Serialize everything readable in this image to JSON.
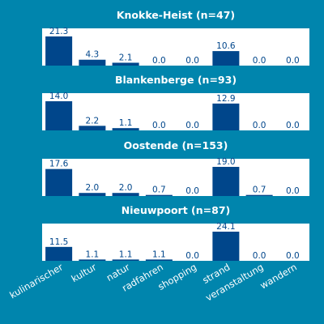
{
  "colors": {
    "background": "#0085ad",
    "panel": "#ffffff",
    "bar": "#00468b",
    "value_text": "#00468b",
    "title_text": "#ffffff",
    "category_text": "#ffffff"
  },
  "chart_data": [
    {
      "type": "bar",
      "title": "Knokke-Heist (n=47)",
      "categories": [
        "kulinarischer",
        "kultur",
        "natur",
        "radfahren",
        "shopping",
        "strand",
        "veranstaltung",
        "wandern"
      ],
      "values": [
        21.3,
        4.3,
        2.1,
        0.0,
        0.0,
        10.6,
        0.0,
        0.0
      ],
      "value_labels": [
        "21.3",
        "4.3",
        "2.1",
        "0.0",
        "0.0",
        "10.6",
        "0.0",
        "0.0"
      ]
    },
    {
      "type": "bar",
      "title": "Blankenberge (n=93)",
      "categories": [
        "kulinarischer",
        "kultur",
        "natur",
        "radfahren",
        "shopping",
        "strand",
        "veranstaltung",
        "wandern"
      ],
      "values": [
        14.0,
        2.2,
        1.1,
        0.0,
        0.0,
        12.9,
        0.0,
        0.0
      ],
      "value_labels": [
        "14.0",
        "2.2",
        "1.1",
        "0.0",
        "0.0",
        "12.9",
        "0.0",
        "0.0"
      ]
    },
    {
      "type": "bar",
      "title": "Oostende (n=153)",
      "categories": [
        "kulinarischer",
        "kultur",
        "natur",
        "radfahren",
        "shopping",
        "strand",
        "veranstaltung",
        "wandern"
      ],
      "values": [
        17.6,
        2.0,
        2.0,
        0.7,
        0.0,
        19.0,
        0.7,
        0.0
      ],
      "value_labels": [
        "17.6",
        "2.0",
        "2.0",
        "0.7",
        "0.0",
        "19.0",
        "0.7",
        "0.0"
      ]
    },
    {
      "type": "bar",
      "title": "Nieuwpoort (n=87)",
      "categories": [
        "kulinarischer",
        "kultur",
        "natur",
        "radfahren",
        "shopping",
        "strand",
        "veranstaltung",
        "wandern"
      ],
      "values": [
        11.5,
        1.1,
        1.1,
        1.1,
        0.0,
        24.1,
        0.0,
        0.0
      ],
      "value_labels": [
        "11.5",
        "1.1",
        "1.1",
        "1.1",
        "0.0",
        "24.1",
        "0.0",
        "0.0"
      ]
    }
  ]
}
